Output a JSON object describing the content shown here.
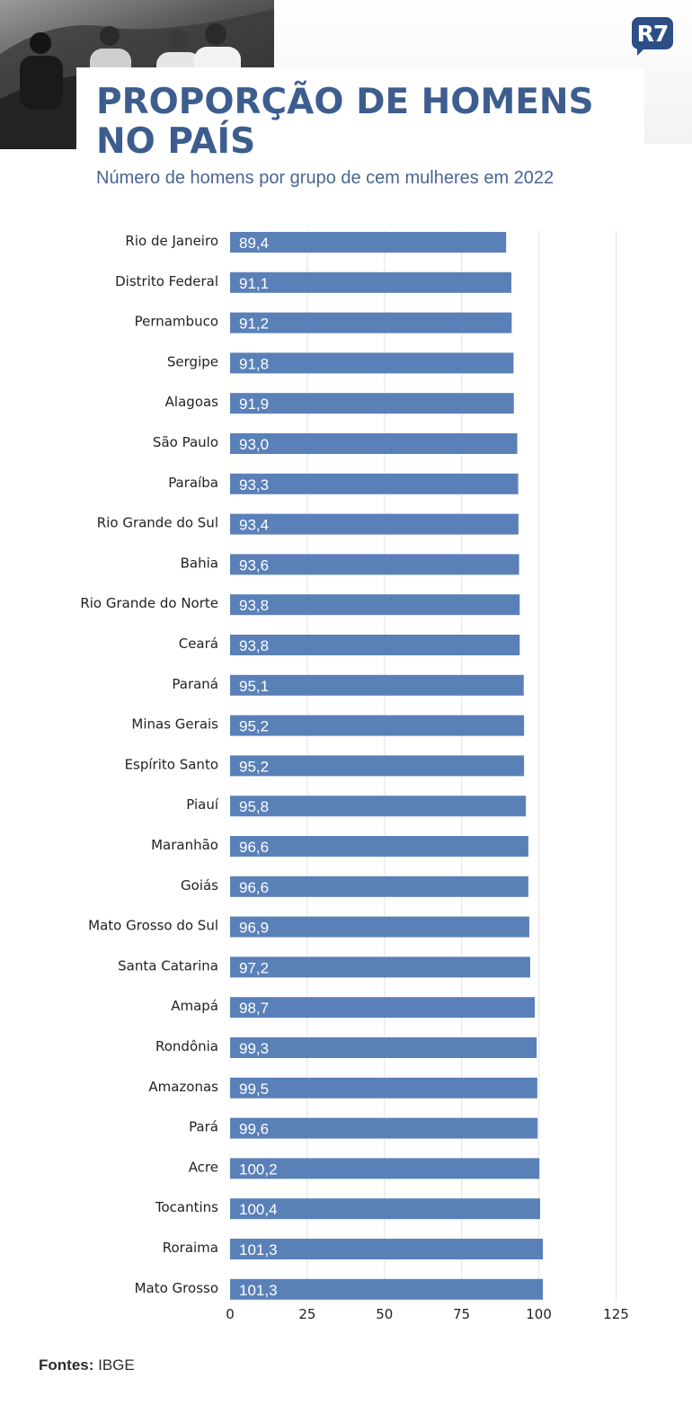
{
  "header": {
    "title_line1": "PROPORÇÃO DE HOMENS",
    "title_line2": "NO PAÍS",
    "subtitle": "Número de homens por grupo de cem mulheres em 2022",
    "logo_text": "R7"
  },
  "footer": {
    "source_label": "Fontes:",
    "source_value": "IBGE"
  },
  "colors": {
    "bar": "#5a80b8",
    "title": "#3d5d8f"
  },
  "chart_data": {
    "type": "bar",
    "orientation": "horizontal",
    "title": "PROPORÇÃO DE HOMENS NO PAÍS",
    "subtitle": "Número de homens por grupo de cem mulheres em 2022",
    "categories": [
      "Rio de Janeiro",
      "Distrito Federal",
      "Pernambuco",
      "Sergipe",
      "Alagoas",
      "São Paulo",
      "Paraíba",
      "Rio Grande do Sul",
      "Bahia",
      "Rio Grande do Norte",
      "Ceará",
      "Paraná",
      "Minas Gerais",
      "Espírito Santo",
      "Piauí",
      "Maranhão",
      "Goiás",
      "Mato Grosso do Sul",
      "Santa Catarina",
      "Amapá",
      "Rondônia",
      "Amazonas",
      "Pará",
      "Acre",
      "Tocantins",
      "Roraima",
      "Mato Grosso"
    ],
    "values": [
      89.4,
      91.1,
      91.2,
      91.8,
      91.9,
      93.0,
      93.3,
      93.4,
      93.6,
      93.8,
      93.8,
      95.1,
      95.2,
      95.2,
      95.8,
      96.6,
      96.6,
      96.9,
      97.2,
      98.7,
      99.3,
      99.5,
      99.6,
      100.2,
      100.4,
      101.3,
      101.3
    ],
    "value_labels": [
      "89,4",
      "91,1",
      "91,2",
      "91,8",
      "91,9",
      "93,0",
      "93,3",
      "93,4",
      "93,6",
      "93,8",
      "93,8",
      "95,1",
      "95,2",
      "95,2",
      "95,8",
      "96,6",
      "96,6",
      "96,9",
      "97,2",
      "98,7",
      "99,3",
      "99,5",
      "99,6",
      "100,2",
      "100,4",
      "101,3",
      "101,3"
    ],
    "xticks": [
      0,
      25,
      50,
      75,
      100,
      125
    ],
    "xlim": [
      0,
      125
    ],
    "grid": true,
    "source": "IBGE"
  }
}
